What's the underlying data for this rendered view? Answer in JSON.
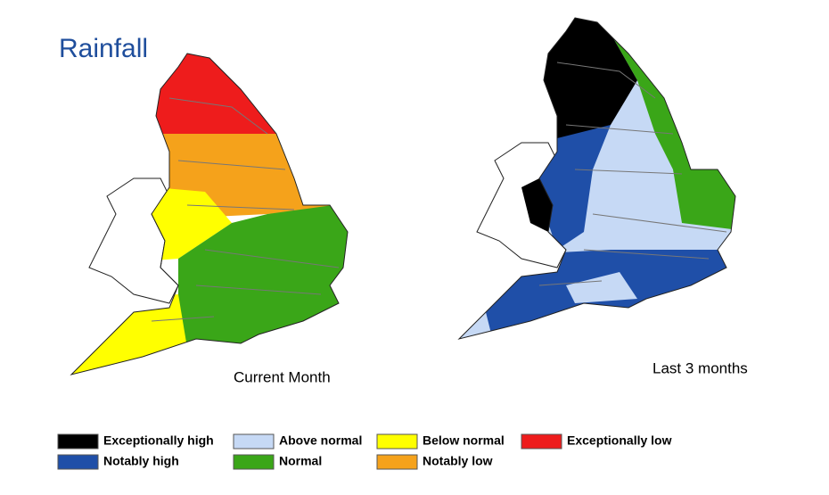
{
  "title": "Rainfall",
  "maps": [
    {
      "label": "Current Month"
    },
    {
      "label": "Last 3 months"
    }
  ],
  "legend": [
    {
      "label": "Exceptionally high",
      "color": "#000000"
    },
    {
      "label": "Notably high",
      "color": "#1f4fa8"
    },
    {
      "label": "Above normal",
      "color": "#c6d9f5"
    },
    {
      "label": "Normal",
      "color": "#3aa618"
    },
    {
      "label": "Below normal",
      "color": "#ffff00"
    },
    {
      "label": "Notably low",
      "color": "#f5a21b"
    },
    {
      "label": "Exceptionally low",
      "color": "#ee1c1c"
    }
  ]
}
